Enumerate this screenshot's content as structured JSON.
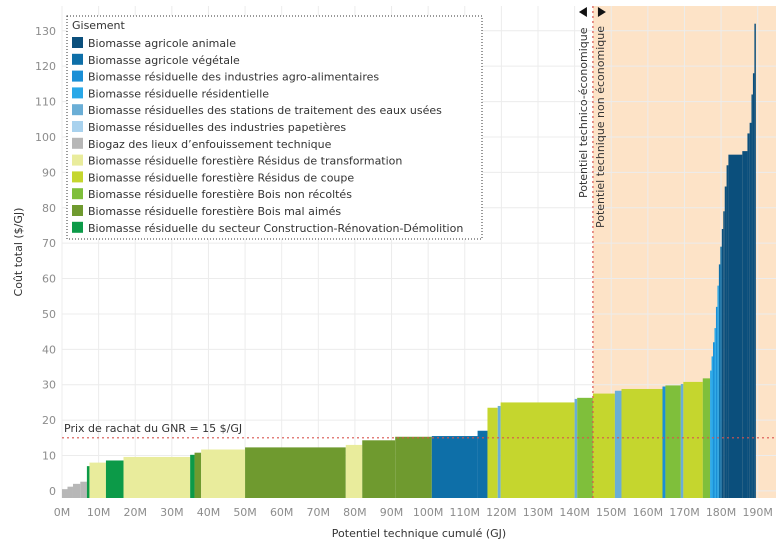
{
  "chart_data": {
    "type": "bar",
    "xlabel": "Potentiel technique cumulé (GJ)",
    "ylabel": "Coût total ($/GJ)",
    "xlim": [
      0,
      195000000
    ],
    "ylim": [
      -2,
      137
    ],
    "x_ticks": [
      {
        "value": 0,
        "label": "0M"
      },
      {
        "value": 10000000,
        "label": "10M"
      },
      {
        "value": 20000000,
        "label": "20M"
      },
      {
        "value": 30000000,
        "label": "30M"
      },
      {
        "value": 40000000,
        "label": "40M"
      },
      {
        "value": 50000000,
        "label": "50M"
      },
      {
        "value": 60000000,
        "label": "60M"
      },
      {
        "value": 70000000,
        "label": "70M"
      },
      {
        "value": 80000000,
        "label": "80M"
      },
      {
        "value": 90000000,
        "label": "90M"
      },
      {
        "value": 100000000,
        "label": "100M"
      },
      {
        "value": 110000000,
        "label": "110M"
      },
      {
        "value": 120000000,
        "label": "120M"
      },
      {
        "value": 130000000,
        "label": "130M"
      },
      {
        "value": 140000000,
        "label": "140M"
      },
      {
        "value": 150000000,
        "label": "150M"
      },
      {
        "value": 160000000,
        "label": "160M"
      },
      {
        "value": 170000000,
        "label": "170M"
      },
      {
        "value": 180000000,
        "label": "180M"
      },
      {
        "value": 190000000,
        "label": "190M"
      }
    ],
    "y_ticks": [
      0,
      10,
      20,
      30,
      40,
      50,
      60,
      70,
      80,
      90,
      100,
      110,
      120,
      130
    ],
    "grid": true,
    "legend": {
      "title": "Gisement",
      "position": "top-left",
      "entries": [
        {
          "name": "Biomasse agricole animale",
          "color": "#0b4f7c"
        },
        {
          "name": "Biomasse agricole végétale",
          "color": "#0e6fa8"
        },
        {
          "name": "Biomasse résiduelle des industries agro-alimentaires",
          "color": "#1a8fd6"
        },
        {
          "name": "Biomasse résiduelle résidentielle",
          "color": "#29a8e8"
        },
        {
          "name": "Biomasse résiduelles des stations de traitement des eaux usées",
          "color": "#6aaed6"
        },
        {
          "name": "Biomasse résiduelles des industries papetières",
          "color": "#a9d2ee"
        },
        {
          "name": "Biogaz des lieux d’enfouissement technique",
          "color": "#b7b7b7"
        },
        {
          "name": "Biomasse résiduelle forestière Résidus de transformation",
          "color": "#e9ec9c"
        },
        {
          "name": "Biomasse résiduelle forestière Résidus de coupe",
          "color": "#c5d62e"
        },
        {
          "name": "Biomasse résiduelle forestière Bois non récoltés",
          "color": "#7fbf3b"
        },
        {
          "name": "Biomasse résiduelle forestière Bois mal aimés",
          "color": "#6f9a2f"
        },
        {
          "name": "Biomasse résiduelle du secteur Construction-Rénovation-Démolition",
          "color": "#0c9a48"
        }
      ]
    },
    "reference_line": {
      "y": 15,
      "label": "Prix de rachat du GNR = 15 $/GJ",
      "color": "#d9534f"
    },
    "threshold": {
      "x": 145000000,
      "left_label": "Potentiel technico-économique",
      "right_label": "Potentiel technique non économique",
      "shade_color": "#fde3c7"
    },
    "segments": [
      {
        "x0": 0,
        "x1": 1500000,
        "y": 0.5,
        "color": "#b7b7b7"
      },
      {
        "x0": 1500000,
        "x1": 3000000,
        "y": 1.2,
        "color": "#b7b7b7"
      },
      {
        "x0": 3000000,
        "x1": 5000000,
        "y": 2.0,
        "color": "#b7b7b7"
      },
      {
        "x0": 5000000,
        "x1": 6800000,
        "y": 2.6,
        "color": "#b7b7b7"
      },
      {
        "x0": 6800000,
        "x1": 7500000,
        "y": 7.0,
        "color": "#0c9a48"
      },
      {
        "x0": 7500000,
        "x1": 12000000,
        "y": 8.0,
        "color": "#e9ec9c"
      },
      {
        "x0": 12000000,
        "x1": 16800000,
        "y": 8.6,
        "color": "#0c9a48"
      },
      {
        "x0": 16800000,
        "x1": 35000000,
        "y": 9.6,
        "color": "#e9ec9c"
      },
      {
        "x0": 35000000,
        "x1": 36200000,
        "y": 10.2,
        "color": "#0c9a48"
      },
      {
        "x0": 36200000,
        "x1": 38000000,
        "y": 10.8,
        "color": "#6f9a2f"
      },
      {
        "x0": 38000000,
        "x1": 50000000,
        "y": 11.7,
        "color": "#e9ec9c"
      },
      {
        "x0": 50000000,
        "x1": 77500000,
        "y": 12.3,
        "color": "#6f9a2f"
      },
      {
        "x0": 77500000,
        "x1": 82000000,
        "y": 13.0,
        "color": "#e9ec9c"
      },
      {
        "x0": 82000000,
        "x1": 91000000,
        "y": 14.3,
        "color": "#6f9a2f"
      },
      {
        "x0": 91000000,
        "x1": 101000000,
        "y": 15.3,
        "color": "#6f9a2f"
      },
      {
        "x0": 101000000,
        "x1": 113500000,
        "y": 15.5,
        "color": "#0e6fa8"
      },
      {
        "x0": 113500000,
        "x1": 116200000,
        "y": 17.0,
        "color": "#0e6fa8"
      },
      {
        "x0": 116200000,
        "x1": 119000000,
        "y": 23.5,
        "color": "#c5d62e"
      },
      {
        "x0": 119000000,
        "x1": 119800000,
        "y": 24.0,
        "color": "#6aaed6"
      },
      {
        "x0": 119800000,
        "x1": 140000000,
        "y": 25.0,
        "color": "#c5d62e"
      },
      {
        "x0": 140000000,
        "x1": 140700000,
        "y": 26.0,
        "color": "#6aaed6"
      },
      {
        "x0": 140700000,
        "x1": 145000000,
        "y": 26.3,
        "color": "#7fbf3b"
      },
      {
        "x0": 145000000,
        "x1": 151000000,
        "y": 27.5,
        "color": "#c5d62e"
      },
      {
        "x0": 151000000,
        "x1": 152800000,
        "y": 28.3,
        "color": "#6aaed6"
      },
      {
        "x0": 152800000,
        "x1": 164000000,
        "y": 28.8,
        "color": "#c5d62e"
      },
      {
        "x0": 164000000,
        "x1": 164800000,
        "y": 29.5,
        "color": "#1a8fd6"
      },
      {
        "x0": 164800000,
        "x1": 169000000,
        "y": 29.8,
        "color": "#7fbf3b"
      },
      {
        "x0": 169000000,
        "x1": 169700000,
        "y": 30.2,
        "color": "#6aaed6"
      },
      {
        "x0": 169700000,
        "x1": 175000000,
        "y": 30.8,
        "color": "#c5d62e"
      },
      {
        "x0": 175000000,
        "x1": 177000000,
        "y": 31.8,
        "color": "#7fbf3b"
      },
      {
        "x0": 177000000,
        "x1": 177400000,
        "y": 34.0,
        "color": "#29a8e8"
      },
      {
        "x0": 177400000,
        "x1": 177800000,
        "y": 38.0,
        "color": "#29a8e8"
      },
      {
        "x0": 177800000,
        "x1": 178200000,
        "y": 42.0,
        "color": "#1a8fd6"
      },
      {
        "x0": 178200000,
        "x1": 178600000,
        "y": 46.0,
        "color": "#29a8e8"
      },
      {
        "x0": 178600000,
        "x1": 179000000,
        "y": 52.0,
        "color": "#1a8fd6"
      },
      {
        "x0": 179000000,
        "x1": 179400000,
        "y": 58.0,
        "color": "#29a8e8"
      },
      {
        "x0": 179400000,
        "x1": 179800000,
        "y": 64.0,
        "color": "#0e6fa8"
      },
      {
        "x0": 179800000,
        "x1": 180200000,
        "y": 69.0,
        "color": "#0e6fa8"
      },
      {
        "x0": 180200000,
        "x1": 180600000,
        "y": 74.0,
        "color": "#0b4f7c"
      },
      {
        "x0": 180600000,
        "x1": 181000000,
        "y": 79.0,
        "color": "#0b4f7c"
      },
      {
        "x0": 181000000,
        "x1": 181500000,
        "y": 86.0,
        "color": "#0b4f7c"
      },
      {
        "x0": 181500000,
        "x1": 182000000,
        "y": 92.0,
        "color": "#0b4f7c"
      },
      {
        "x0": 182000000,
        "x1": 185800000,
        "y": 95.0,
        "color": "#0b4f7c"
      },
      {
        "x0": 185800000,
        "x1": 187200000,
        "y": 96.0,
        "color": "#0b4f7c"
      },
      {
        "x0": 187200000,
        "x1": 187800000,
        "y": 101.0,
        "color": "#0b4f7c"
      },
      {
        "x0": 187800000,
        "x1": 188300000,
        "y": 104.0,
        "color": "#0b4f7c"
      },
      {
        "x0": 188300000,
        "x1": 188700000,
        "y": 112.0,
        "color": "#0b4f7c"
      },
      {
        "x0": 188700000,
        "x1": 189100000,
        "y": 118.0,
        "color": "#0b4f7c"
      },
      {
        "x0": 189100000,
        "x1": 189500000,
        "y": 132.0,
        "color": "#0b4f7c"
      }
    ]
  }
}
